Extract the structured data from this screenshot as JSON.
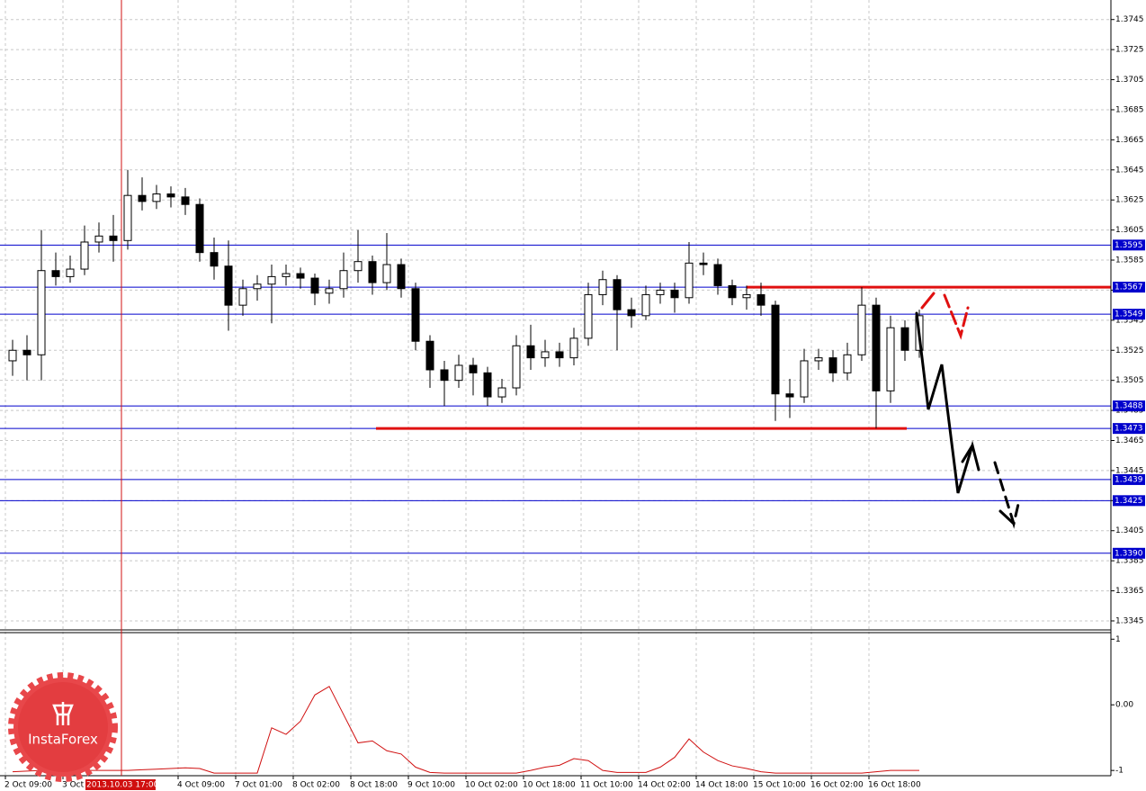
{
  "chart_data": {
    "type": "candlestick",
    "ylim": [
      1.3339,
      1.3758
    ],
    "yticks": [
      1.3745,
      1.3725,
      1.3705,
      1.3685,
      1.3665,
      1.3645,
      1.3625,
      1.3605,
      1.3585,
      1.3565,
      1.3545,
      1.3525,
      1.3505,
      1.3485,
      1.3465,
      1.3445,
      1.3425,
      1.3405,
      1.3385,
      1.3365,
      1.3345
    ],
    "xlim": [
      0,
      77
    ],
    "xticks": [
      {
        "value": 0,
        "label": "2 Oct 09:00"
      },
      {
        "value": 4,
        "label": "3 Oct"
      },
      {
        "value": 12,
        "label": "4 Oct 09:00"
      },
      {
        "value": 16,
        "label": "7 Oct 01:00"
      },
      {
        "value": 20,
        "label": "8 Oct 02:00"
      },
      {
        "value": 24,
        "label": "8 Oct 18:00"
      },
      {
        "value": 28,
        "label": "9 Oct 10:00"
      },
      {
        "value": 32,
        "label": "10 Oct 02:00"
      },
      {
        "value": 36,
        "label": "10 Oct 18:00"
      },
      {
        "value": 40,
        "label": "11 Oct 10:00"
      },
      {
        "value": 44,
        "label": "14 Oct 02:00"
      },
      {
        "value": 48,
        "label": "14 Oct 18:00"
      },
      {
        "value": 52,
        "label": "15 Oct 10:00"
      },
      {
        "value": 56,
        "label": "16 Oct 02:00"
      },
      {
        "value": 60,
        "label": "16 Oct 18:00"
      }
    ],
    "crosshair_label": "2013.10.03 17:00",
    "grid": true,
    "open": [
      1.3518,
      1.3525,
      1.3522,
      1.3578,
      1.3574,
      1.3579,
      1.3597,
      1.3601,
      1.3598,
      1.3628,
      1.3624,
      1.3629,
      1.3627,
      1.3622,
      1.359,
      1.3581,
      1.3555,
      1.3566,
      1.3569,
      1.3574,
      1.3576,
      1.3573,
      1.3563,
      1.3566,
      1.3578,
      1.3584,
      1.357,
      1.3582,
      1.3566,
      1.3531,
      1.3512,
      1.3505,
      1.3515,
      1.351,
      1.3494,
      1.35,
      1.3528,
      1.352,
      1.3524,
      1.352,
      1.3533,
      1.3562,
      1.3572,
      1.3552,
      1.3548,
      1.3562,
      1.3565,
      1.356,
      1.3583,
      1.3582,
      1.3568,
      1.356,
      1.3562,
      1.3555,
      1.3496,
      1.3494,
      1.3518,
      1.352,
      1.351,
      1.3522,
      1.3555,
      1.3498,
      1.354,
      1.3525
    ],
    "high": [
      1.3532,
      1.3535,
      1.3605,
      1.359,
      1.3588,
      1.3608,
      1.361,
      1.3615,
      1.3645,
      1.364,
      1.3635,
      1.3634,
      1.3633,
      1.3626,
      1.36,
      1.3598,
      1.3572,
      1.3575,
      1.3582,
      1.3582,
      1.358,
      1.3576,
      1.3572,
      1.359,
      1.3605,
      1.3588,
      1.3603,
      1.3586,
      1.357,
      1.3535,
      1.3518,
      1.3522,
      1.352,
      1.3514,
      1.3506,
      1.3535,
      1.3542,
      1.3532,
      1.353,
      1.354,
      1.357,
      1.3578,
      1.3575,
      1.356,
      1.3568,
      1.357,
      1.357,
      1.3597,
      1.359,
      1.3586,
      1.3572,
      1.3568,
      1.357,
      1.3558,
      1.3506,
      1.3526,
      1.3526,
      1.3525,
      1.353,
      1.3567,
      1.356,
      1.3548,
      1.3545,
      1.3552
    ],
    "low": [
      1.3508,
      1.3505,
      1.3505,
      1.3568,
      1.357,
      1.3575,
      1.359,
      1.3584,
      1.3592,
      1.3618,
      1.3619,
      1.362,
      1.3615,
      1.3584,
      1.3572,
      1.3538,
      1.3548,
      1.3558,
      1.3543,
      1.3568,
      1.3566,
      1.3555,
      1.3556,
      1.356,
      1.357,
      1.3562,
      1.3565,
      1.356,
      1.3525,
      1.35,
      1.3488,
      1.35,
      1.3495,
      1.3488,
      1.349,
      1.3495,
      1.3512,
      1.3514,
      1.3514,
      1.3515,
      1.3528,
      1.3555,
      1.3525,
      1.354,
      1.3545,
      1.3556,
      1.355,
      1.3556,
      1.3575,
      1.3562,
      1.3555,
      1.3552,
      1.3548,
      1.3478,
      1.348,
      1.349,
      1.3512,
      1.3504,
      1.3505,
      1.3518,
      1.3473,
      1.349,
      1.3518,
      1.352
    ],
    "close": [
      1.3525,
      1.3522,
      1.3578,
      1.3574,
      1.3579,
      1.3597,
      1.3601,
      1.3598,
      1.3628,
      1.3624,
      1.3629,
      1.3627,
      1.3622,
      1.359,
      1.3581,
      1.3555,
      1.3566,
      1.3569,
      1.3574,
      1.3576,
      1.3573,
      1.3563,
      1.3566,
      1.3578,
      1.3584,
      1.357,
      1.3582,
      1.3566,
      1.3531,
      1.3512,
      1.3505,
      1.3515,
      1.351,
      1.3494,
      1.35,
      1.3528,
      1.352,
      1.3524,
      1.352,
      1.3533,
      1.3562,
      1.3572,
      1.3552,
      1.3548,
      1.3562,
      1.3565,
      1.356,
      1.3583,
      1.3582,
      1.3568,
      1.356,
      1.3562,
      1.3555,
      1.3496,
      1.3494,
      1.3518,
      1.352,
      1.351,
      1.3522,
      1.3555,
      1.3498,
      1.354,
      1.3525,
      1.3548
    ],
    "levels": [
      1.3595,
      1.3567,
      1.3549,
      1.3488,
      1.3473,
      1.3439,
      1.3425,
      {
        "value": 1.339,
        "label": "1.3390"
      }
    ],
    "level_color": "#0000cc",
    "resistance": 1.3567,
    "support": 1.3473,
    "line_color": "#e01010",
    "indicator": {
      "ylim": [
        -1.08,
        1.1
      ],
      "yticks": [
        1,
        {
          "value": 0,
          "label": "0.00"
        },
        -1
      ],
      "color": "#d01010",
      "values": [
        -1.02,
        -1.01,
        -1.0,
        -1.0,
        -1.0,
        -1.0,
        -1.0,
        -1.0,
        -1.0,
        -0.99,
        -0.98,
        -0.97,
        -0.96,
        -0.97,
        -1.04,
        -1.04,
        -1.04,
        -1.04,
        -0.35,
        -0.45,
        -0.25,
        0.15,
        0.28,
        -0.15,
        -0.58,
        -0.55,
        -0.7,
        -0.75,
        -0.95,
        -1.03,
        -1.04,
        -1.04,
        -1.04,
        -1.04,
        -1.04,
        -1.04,
        -1.0,
        -0.95,
        -0.92,
        -0.82,
        -0.85,
        -1.0,
        -1.03,
        -1.03,
        -1.03,
        -0.95,
        -0.8,
        -0.52,
        -0.72,
        -0.85,
        -0.93,
        -0.97,
        -1.02,
        -1.04,
        -1.04,
        -1.04,
        -1.04,
        -1.04,
        -1.04,
        -1.04,
        -1.02,
        -1.0,
        -1.0,
        -1.0
      ]
    }
  },
  "logo": {
    "text": "InstaForex"
  }
}
